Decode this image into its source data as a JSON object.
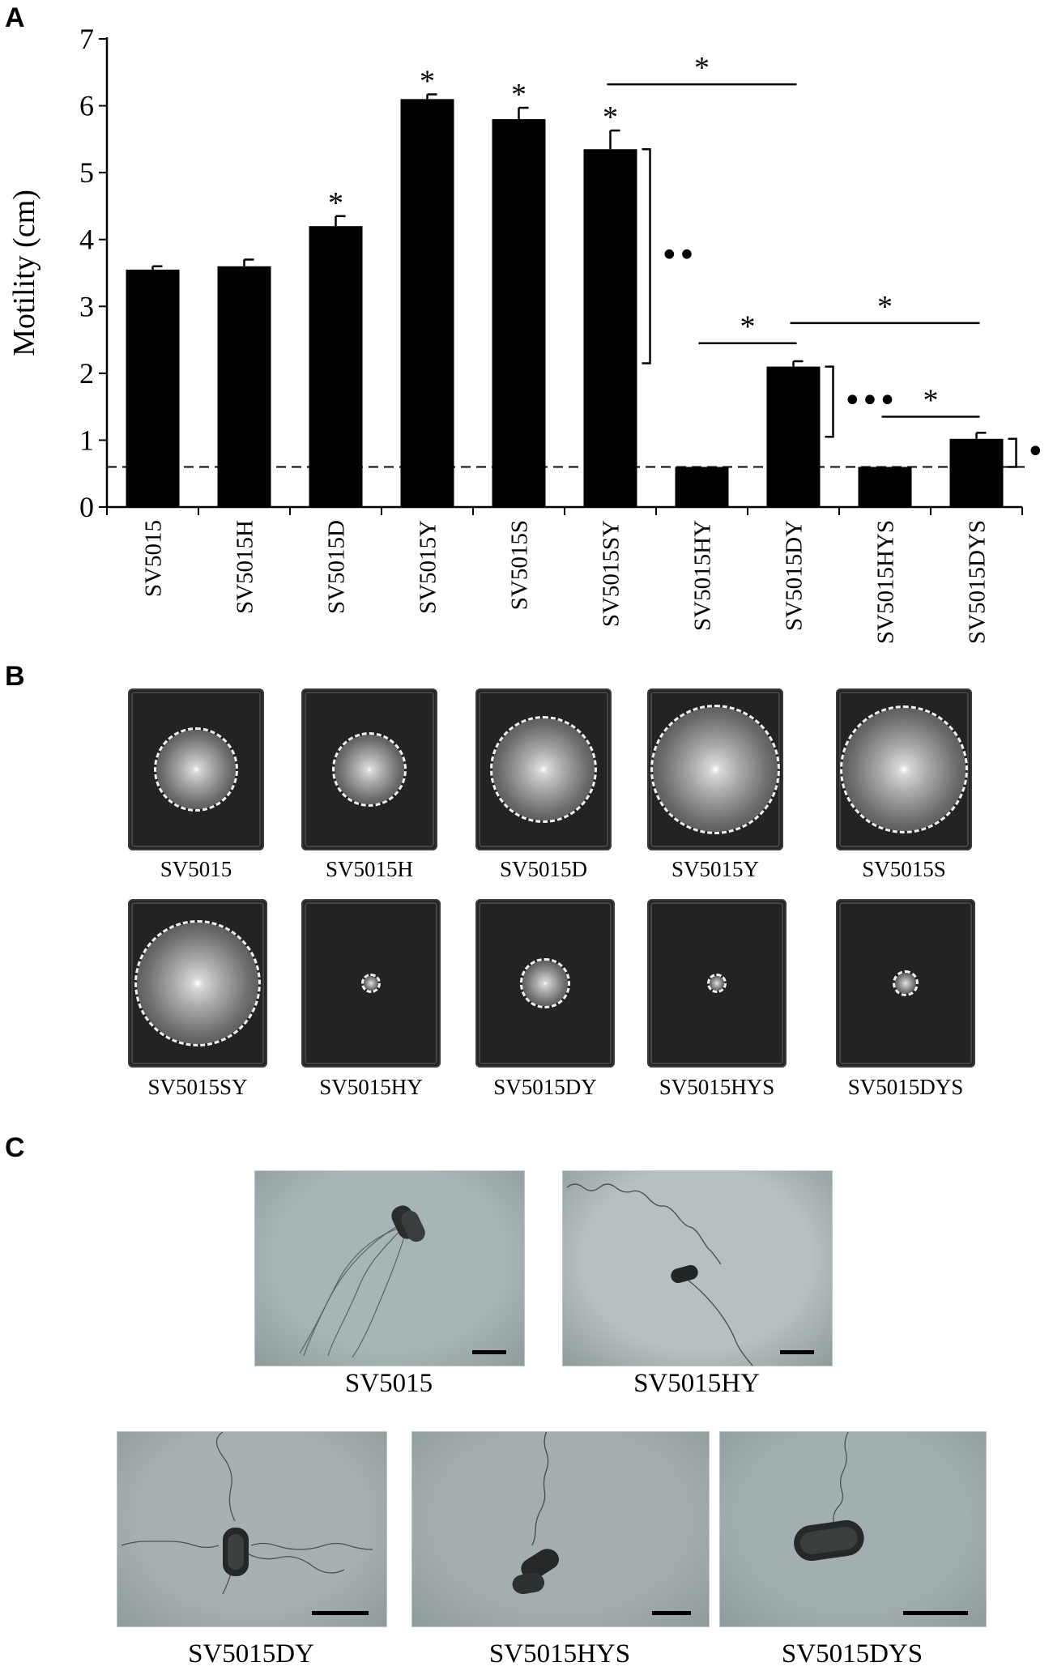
{
  "panels": {
    "a": "A",
    "b": "B",
    "c": "C"
  },
  "chart_data": {
    "type": "bar",
    "ylabel": "Motility (cm)",
    "ylim": [
      0,
      7
    ],
    "yticks": [
      0,
      1,
      2,
      3,
      4,
      5,
      6,
      7
    ],
    "categories": [
      "SV5015",
      "SV5015H",
      "SV5015D",
      "SV5015Y",
      "SV5015S",
      "SV5015SY",
      "SV5015HY",
      "SV5015DY",
      "SV5015HYS",
      "SV5015DYS"
    ],
    "values": [
      3.55,
      3.6,
      4.2,
      6.1,
      5.8,
      5.35,
      0.6,
      2.1,
      0.6,
      1.02
    ],
    "errors": [
      0.05,
      0.1,
      0.15,
      0.07,
      0.17,
      0.28,
      0,
      0.08,
      0,
      0.09
    ],
    "bar_color": "#000000",
    "baseline": {
      "value": 0.6,
      "style": "dashed"
    },
    "stars": {
      "symbol": "*",
      "bars": [
        2,
        3,
        4,
        5
      ]
    },
    "comparisons": [
      {
        "from": 5,
        "to": 7,
        "y": 6.32,
        "label": "*"
      },
      {
        "from": 6,
        "to": 7,
        "y": 2.45,
        "label": "*"
      },
      {
        "from": 7,
        "to": 9,
        "y": 2.75,
        "label": "*"
      },
      {
        "from": 8,
        "to": 9,
        "y": 1.35,
        "label": "*"
      }
    ],
    "brackets": [
      {
        "bar": 5,
        "top": 5.35,
        "bottom": 2.15,
        "label": "••"
      },
      {
        "bar": 7,
        "top": 2.1,
        "bottom": 1.05,
        "label": "•••"
      },
      {
        "bar": 9,
        "top": 1.02,
        "bottom": 0.6,
        "label": "•"
      }
    ]
  },
  "plates": [
    {
      "label": "SV5015",
      "swarm": 0.62
    },
    {
      "label": "SV5015H",
      "swarm": 0.55
    },
    {
      "label": "SV5015D",
      "swarm": 0.8
    },
    {
      "label": "SV5015Y",
      "swarm": 0.98
    },
    {
      "label": "SV5015S",
      "swarm": 0.96
    },
    {
      "label": "SV5015SY",
      "swarm": 0.93
    },
    {
      "label": "SV5015HY",
      "swarm": 0.1
    },
    {
      "label": "SV5015DY",
      "swarm": 0.34
    },
    {
      "label": "SV5015HYS",
      "swarm": 0.1
    },
    {
      "label": "SV5015DYS",
      "swarm": 0.16
    }
  ],
  "tem": [
    {
      "label": "SV5015",
      "bg": "#a8b5b6"
    },
    {
      "label": "SV5015HY",
      "bg": "#b6c0c1"
    },
    {
      "label": "SV5015DY",
      "bg": "#a6b0b2"
    },
    {
      "label": "SV5015HYS",
      "bg": "#a4aeb1"
    },
    {
      "label": "SV5015DYS",
      "bg": "#a3aeb0"
    }
  ]
}
